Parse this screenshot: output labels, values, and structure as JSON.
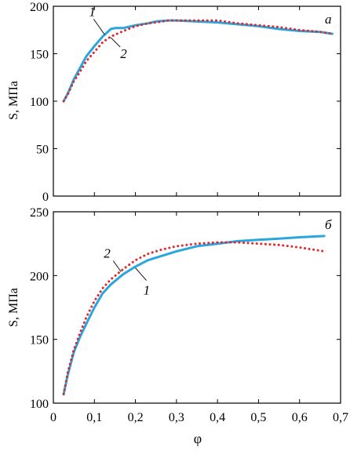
{
  "chart_data": [
    {
      "type": "line",
      "panel_label": "а",
      "ylabel": "S, МПа",
      "xlabel": "",
      "xlim": [
        0,
        0.7
      ],
      "ylim": [
        0,
        200
      ],
      "x_ticks": [
        "0",
        "0,1",
        "0,2",
        "0,3",
        "0,4",
        "0,5",
        "0,6",
        "0,7"
      ],
      "y_ticks": [
        "0",
        "50",
        "100",
        "150",
        "200"
      ],
      "series": [
        {
          "name": "1",
          "color": "#2aa6dc",
          "style": "solid",
          "points": [
            [
              0.025,
              100
            ],
            [
              0.035,
              108
            ],
            [
              0.05,
              123
            ],
            [
              0.065,
              135
            ],
            [
              0.08,
              147
            ],
            [
              0.1,
              158
            ],
            [
              0.12,
              168
            ],
            [
              0.14,
              176
            ],
            [
              0.15,
              177
            ],
            [
              0.17,
              177
            ],
            [
              0.2,
              180
            ],
            [
              0.23,
              182
            ],
            [
              0.25,
              184
            ],
            [
              0.28,
              185
            ],
            [
              0.3,
              185
            ],
            [
              0.35,
              184
            ],
            [
              0.4,
              183
            ],
            [
              0.45,
              181
            ],
            [
              0.5,
              179
            ],
            [
              0.55,
              176
            ],
            [
              0.6,
              174
            ],
            [
              0.65,
              173
            ],
            [
              0.68,
              171
            ]
          ]
        },
        {
          "name": "2",
          "color": "#e0282c",
          "style": "dotted",
          "points": [
            [
              0.025,
              100
            ],
            [
              0.035,
              107
            ],
            [
              0.05,
              121
            ],
            [
              0.065,
              131
            ],
            [
              0.08,
              142
            ],
            [
              0.1,
              152
            ],
            [
              0.12,
              162
            ],
            [
              0.14,
              168
            ],
            [
              0.16,
              172
            ],
            [
              0.2,
              179
            ],
            [
              0.23,
              182
            ],
            [
              0.25,
              183
            ],
            [
              0.28,
              185
            ],
            [
              0.3,
              185
            ],
            [
              0.35,
              185
            ],
            [
              0.4,
              185
            ],
            [
              0.45,
              182
            ],
            [
              0.5,
              180
            ],
            [
              0.55,
              178
            ],
            [
              0.6,
              175
            ],
            [
              0.65,
              173
            ],
            [
              0.68,
              171
            ]
          ]
        }
      ],
      "annotations": [
        {
          "text": "1",
          "series": "1",
          "anchor": [
            0.125,
            170
          ]
        },
        {
          "text": "2",
          "series": "2",
          "anchor": [
            0.14,
            167
          ]
        }
      ]
    },
    {
      "type": "line",
      "panel_label": "б",
      "ylabel": "S, МПа",
      "xlabel": "φ",
      "xlim": [
        0,
        0.7
      ],
      "ylim": [
        100,
        250
      ],
      "x_ticks": [
        "0",
        "0,1",
        "0,2",
        "0,3",
        "0,4",
        "0,5",
        "0,6",
        "0,7"
      ],
      "y_ticks": [
        "100",
        "150",
        "200",
        "250"
      ],
      "series": [
        {
          "name": "1",
          "color": "#2aa6dc",
          "style": "solid",
          "points": [
            [
              0.025,
              107
            ],
            [
              0.035,
              122
            ],
            [
              0.05,
              140
            ],
            [
              0.065,
              152
            ],
            [
              0.08,
              162
            ],
            [
              0.1,
              175
            ],
            [
              0.12,
              186
            ],
            [
              0.14,
              193
            ],
            [
              0.17,
              201
            ],
            [
              0.2,
              207
            ],
            [
              0.23,
              212
            ],
            [
              0.26,
              215
            ],
            [
              0.3,
              219
            ],
            [
              0.35,
              223
            ],
            [
              0.4,
              225
            ],
            [
              0.45,
              227
            ],
            [
              0.5,
              228
            ],
            [
              0.55,
              229
            ],
            [
              0.6,
              230
            ],
            [
              0.66,
              231
            ]
          ]
        },
        {
          "name": "2",
          "color": "#e0282c",
          "style": "dotted",
          "points": [
            [
              0.025,
              107
            ],
            [
              0.035,
              124
            ],
            [
              0.05,
              142
            ],
            [
              0.065,
              155
            ],
            [
              0.08,
              167
            ],
            [
              0.1,
              180
            ],
            [
              0.12,
              190
            ],
            [
              0.14,
              197
            ],
            [
              0.17,
              205
            ],
            [
              0.2,
              212
            ],
            [
              0.23,
              217
            ],
            [
              0.26,
              220
            ],
            [
              0.3,
              223
            ],
            [
              0.35,
              225
            ],
            [
              0.4,
              226
            ],
            [
              0.45,
              226
            ],
            [
              0.5,
              225
            ],
            [
              0.55,
              224
            ],
            [
              0.6,
              222
            ],
            [
              0.66,
              219
            ]
          ]
        }
      ],
      "annotations": [
        {
          "text": "2",
          "series": "2",
          "anchor": [
            0.165,
            203
          ]
        },
        {
          "text": "1",
          "series": "1",
          "anchor": [
            0.2,
            206
          ]
        }
      ]
    }
  ]
}
